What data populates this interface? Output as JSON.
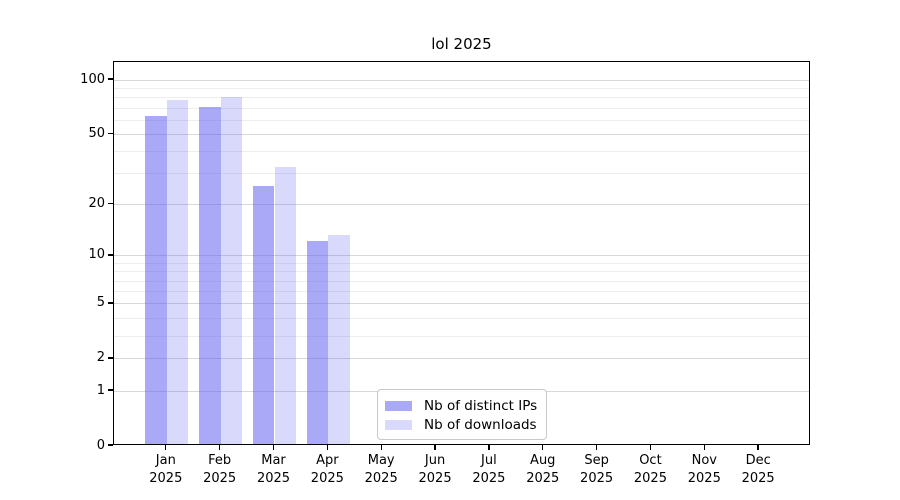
{
  "title": "lol 2025",
  "chart_data": {
    "type": "bar",
    "title": "lol 2025",
    "scale": "log10(value+1)",
    "months": [
      "Jan",
      "Feb",
      "Mar",
      "Apr",
      "May",
      "Jun",
      "Jul",
      "Aug",
      "Sep",
      "Oct",
      "Nov",
      "Dec"
    ],
    "year_label": "2025",
    "series": [
      {
        "name": "Nb of distinct IPs",
        "color": "rgba(102,102,243,0.56)",
        "values": [
          62,
          69,
          25,
          12,
          0,
          0,
          0,
          0,
          0,
          0,
          0,
          0
        ]
      },
      {
        "name": "Nb of downloads",
        "color": "rgba(102,102,243,0.25)",
        "values": [
          76,
          79,
          32,
          13,
          0,
          0,
          0,
          0,
          0,
          0,
          0,
          0
        ]
      }
    ],
    "y_ticks": [
      0,
      1,
      2,
      5,
      10,
      20,
      50,
      100
    ],
    "y_minor_ticks": [
      3,
      4,
      6,
      7,
      8,
      9,
      30,
      40,
      60,
      70,
      80,
      90
    ],
    "ylim": [
      0,
      126
    ],
    "xlabel": "",
    "ylabel": "",
    "grid": "on",
    "legend_position": "lower-center"
  }
}
